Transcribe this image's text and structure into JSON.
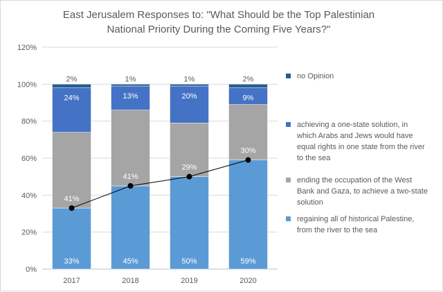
{
  "chart_data": {
    "type": "bar",
    "stacked": true,
    "title_lines": [
      "East Jerusalem Responses to: \"What Should be the Top Palestinian",
      "National Priority During the Coming Five Years?\""
    ],
    "xlabel": "",
    "ylabel": "",
    "ylim": [
      0,
      120
    ],
    "yticks": [
      "0%",
      "20%",
      "40%",
      "60%",
      "80%",
      "100%",
      "120%"
    ],
    "ytick_values": [
      0,
      20,
      40,
      60,
      80,
      100,
      120
    ],
    "grid": true,
    "legend_position": "right",
    "categories": [
      "2017",
      "2018",
      "2019",
      "2020"
    ],
    "series": [
      {
        "name": "regaining all of historical Palestine, from the river to the sea",
        "legend_lines": [
          "regaining all of historical Palestine,",
          "from the river to the sea"
        ],
        "color": "#5b9bd5",
        "label_color": "#ffffff",
        "values": [
          33,
          45,
          50,
          59
        ],
        "labels": [
          "33%",
          "45%",
          "50%",
          "59%"
        ]
      },
      {
        "name": "ending the occupation of the West Bank and Gaza, to achieve a two-state solution",
        "legend_lines": [
          "ending the occupation of the West",
          "Bank and Gaza, to achieve a two-state",
          "solution"
        ],
        "color": "#a5a5a5",
        "label_color": "#ffffff",
        "values": [
          41,
          41,
          29,
          30
        ],
        "labels": [
          "41%",
          "41%",
          "29%",
          "30%"
        ]
      },
      {
        "name": "achieving a one-state solution, in which Arabs and Jews would have equal rights in one state from the river to the sea",
        "legend_lines": [
          "achieving a one-state solution, in",
          "which Arabs and Jews would have",
          "equal rights in one state from the river",
          "to the sea"
        ],
        "color": "#4472c4",
        "label_color": "#ffffff",
        "values": [
          24,
          13,
          20,
          9
        ],
        "labels": [
          "24%",
          "13%",
          "20%",
          "9%"
        ]
      },
      {
        "name": "no Opinion",
        "legend_lines": [
          "no Opinion"
        ],
        "color": "#255e91",
        "label_color": "#595959",
        "values": [
          2,
          1,
          1,
          2
        ],
        "labels": [
          "2%",
          "1%",
          "1%",
          "2%"
        ]
      }
    ],
    "trend_line": {
      "color": "#000000",
      "values": [
        33,
        45,
        50,
        59
      ]
    }
  }
}
